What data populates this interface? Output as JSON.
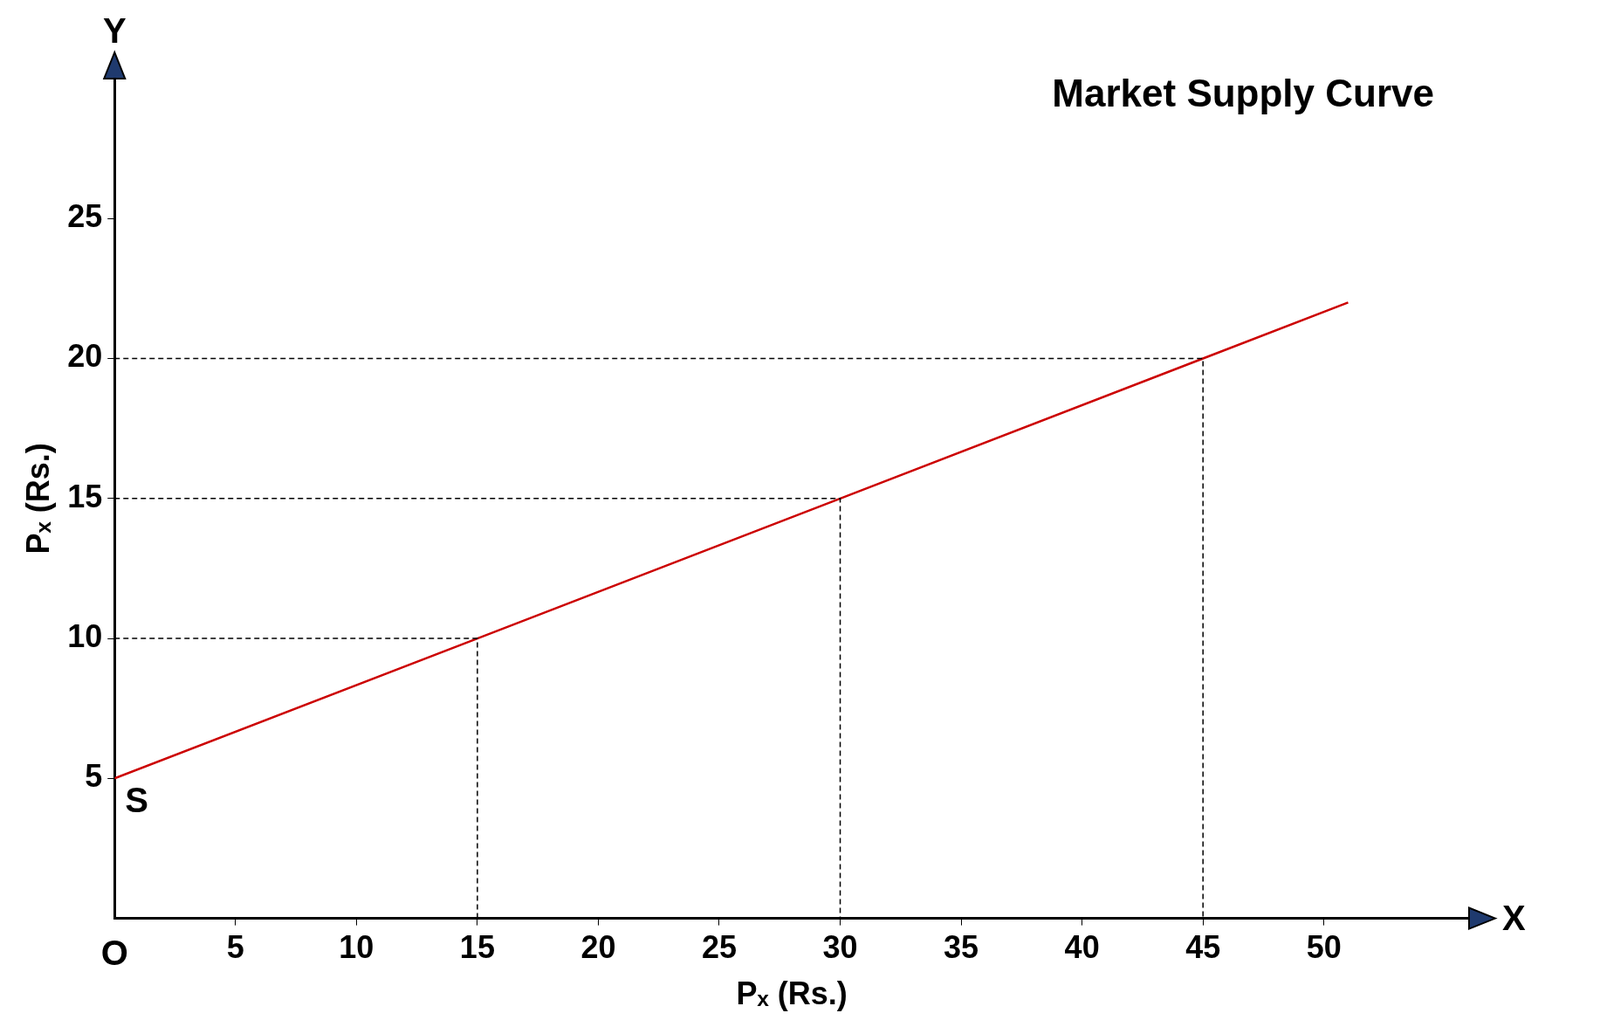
{
  "chart_data": {
    "type": "line",
    "title": "Market Supply Curve",
    "x_label": "Pₓ (Rs.)",
    "y_label": "Pₓ (Rs.)",
    "series": [
      {
        "name": "S",
        "color": "#cc0000",
        "x": [
          0,
          15,
          30,
          45,
          51
        ],
        "values": [
          5,
          10,
          15,
          20,
          22
        ]
      }
    ],
    "guide_points": {
      "x": [
        15,
        30,
        45
      ],
      "y": [
        10,
        15,
        20
      ]
    },
    "origin_label": "O",
    "axis_end_labels": {
      "x": "X",
      "y": "Y"
    },
    "xlim": [
      0,
      56
    ],
    "xticks": [
      5,
      10,
      15,
      20,
      25,
      30,
      35,
      40,
      45,
      50
    ],
    "ylim": [
      0,
      30
    ],
    "yticks": [
      5,
      10,
      15,
      20,
      25
    ],
    "grid": false
  }
}
